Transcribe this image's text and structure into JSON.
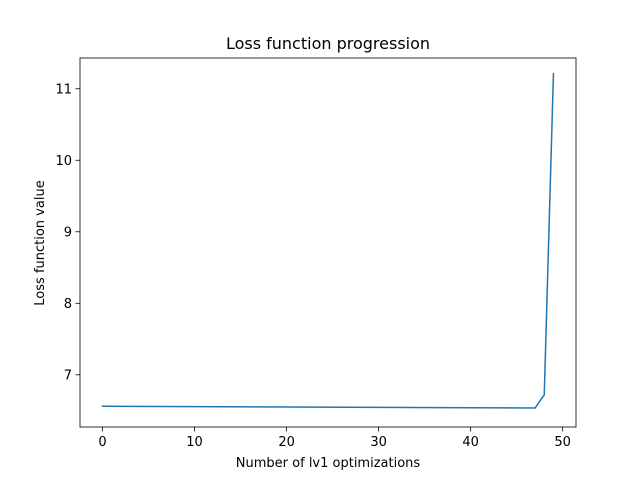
{
  "chart_data": {
    "type": "line",
    "title": "Loss function progression",
    "xlabel": "Number of lv1 optimizations",
    "ylabel": "Loss function value",
    "xlim": [
      -2.45,
      51.45
    ],
    "ylim": [
      6.27,
      11.43
    ],
    "xticks": [
      0,
      10,
      20,
      30,
      40,
      50
    ],
    "yticks": [
      7,
      8,
      9,
      10,
      11
    ],
    "xtick_labels": [
      "0",
      "10",
      "20",
      "30",
      "40",
      "50"
    ],
    "ytick_labels": [
      "7",
      "8",
      "9",
      "10",
      "11"
    ],
    "grid": false,
    "series": [
      {
        "color": "#1f77b4",
        "x": [
          0,
          10,
          20,
          30,
          40,
          47,
          48,
          49
        ],
        "y": [
          6.56,
          6.555,
          6.55,
          6.545,
          6.54,
          6.535,
          6.72,
          11.21
        ]
      }
    ]
  }
}
